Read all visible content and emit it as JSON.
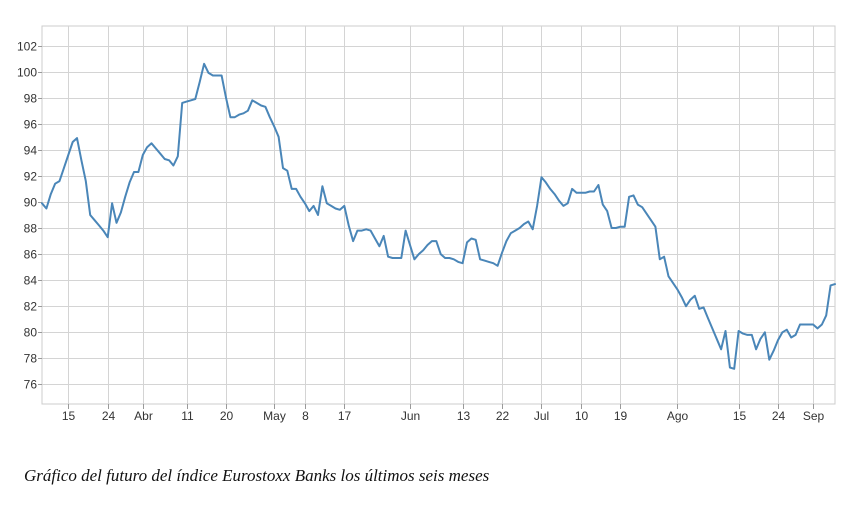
{
  "caption": "Gráfico del futuro del índice Eurostoxx Banks los últimos seis meses",
  "chart_data": {
    "type": "line",
    "title": "",
    "xlabel": "",
    "ylabel": "",
    "ylim": [
      74.5,
      103.5
    ],
    "grid": true,
    "line_color": "#4a86b8",
    "y_ticks": [
      76,
      78,
      80,
      82,
      84,
      86,
      88,
      90,
      92,
      94,
      96,
      98,
      100,
      102
    ],
    "x_ticks": [
      {
        "label": "15",
        "day": 6
      },
      {
        "label": "24",
        "day": 15
      },
      {
        "label": "Abr",
        "day": 23
      },
      {
        "label": "11",
        "day": 33
      },
      {
        "label": "20",
        "day": 42
      },
      {
        "label": "May",
        "day": 53
      },
      {
        "label": "8",
        "day": 60
      },
      {
        "label": "17",
        "day": 69
      },
      {
        "label": "Jun",
        "day": 84
      },
      {
        "label": "13",
        "day": 96
      },
      {
        "label": "22",
        "day": 105
      },
      {
        "label": "Jul",
        "day": 114
      },
      {
        "label": "10",
        "day": 123
      },
      {
        "label": "19",
        "day": 132
      },
      {
        "label": "Ago",
        "day": 145
      },
      {
        "label": "15",
        "day": 159
      },
      {
        "label": "24",
        "day": 168
      },
      {
        "label": "Sep",
        "day": 176
      }
    ],
    "series": [
      {
        "values": [
          [
            0,
            89.9
          ],
          [
            1,
            89.5
          ],
          [
            2,
            90.6
          ],
          [
            3,
            91.4
          ],
          [
            4,
            91.6
          ],
          [
            5,
            92.6
          ],
          [
            6,
            93.6
          ],
          [
            7,
            94.6
          ],
          [
            8,
            94.9
          ],
          [
            9,
            93.2
          ],
          [
            10,
            91.6
          ],
          [
            11,
            89.0
          ],
          [
            12,
            88.6
          ],
          [
            13,
            88.2
          ],
          [
            14,
            87.8
          ],
          [
            15,
            87.3
          ],
          [
            16,
            89.9
          ],
          [
            17,
            88.4
          ],
          [
            18,
            89.2
          ],
          [
            19,
            90.4
          ],
          [
            20,
            91.5
          ],
          [
            21,
            92.3
          ],
          [
            22,
            92.3
          ],
          [
            23,
            93.6
          ],
          [
            24,
            94.2
          ],
          [
            25,
            94.5
          ],
          [
            26,
            94.1
          ],
          [
            27,
            93.7
          ],
          [
            28,
            93.3
          ],
          [
            29,
            93.2
          ],
          [
            30,
            92.8
          ],
          [
            31,
            93.5
          ],
          [
            32,
            97.6
          ],
          [
            33,
            97.7
          ],
          [
            34,
            97.8
          ],
          [
            35,
            97.9
          ],
          [
            36,
            99.2
          ],
          [
            37,
            100.6
          ],
          [
            38,
            99.9
          ],
          [
            39,
            99.7
          ],
          [
            40,
            99.7
          ],
          [
            41,
            99.7
          ],
          [
            42,
            98.0
          ],
          [
            43,
            96.5
          ],
          [
            44,
            96.5
          ],
          [
            45,
            96.7
          ],
          [
            46,
            96.8
          ],
          [
            47,
            97.0
          ],
          [
            48,
            97.8
          ],
          [
            49,
            97.6
          ],
          [
            50,
            97.4
          ],
          [
            51,
            97.3
          ],
          [
            52,
            96.5
          ],
          [
            53,
            95.8
          ],
          [
            54,
            95.0
          ],
          [
            55,
            92.6
          ],
          [
            56,
            92.4
          ],
          [
            57,
            91.0
          ],
          [
            58,
            91.0
          ],
          [
            59,
            90.4
          ],
          [
            60,
            89.9
          ],
          [
            61,
            89.3
          ],
          [
            62,
            89.7
          ],
          [
            63,
            89.0
          ],
          [
            64,
            91.2
          ],
          [
            65,
            89.9
          ],
          [
            66,
            89.7
          ],
          [
            67,
            89.5
          ],
          [
            68,
            89.4
          ],
          [
            69,
            89.7
          ],
          [
            70,
            88.2
          ],
          [
            71,
            87.0
          ],
          [
            72,
            87.8
          ],
          [
            73,
            87.8
          ],
          [
            74,
            87.9
          ],
          [
            75,
            87.8
          ],
          [
            76,
            87.2
          ],
          [
            77,
            86.6
          ],
          [
            78,
            87.4
          ],
          [
            79,
            85.8
          ],
          [
            80,
            85.7
          ],
          [
            81,
            85.7
          ],
          [
            82,
            85.7
          ],
          [
            83,
            87.8
          ],
          [
            84,
            86.7
          ],
          [
            85,
            85.6
          ],
          [
            86,
            86.0
          ],
          [
            87,
            86.3
          ],
          [
            88,
            86.7
          ],
          [
            89,
            87.0
          ],
          [
            90,
            87.0
          ],
          [
            91,
            86.0
          ],
          [
            92,
            85.7
          ],
          [
            93,
            85.7
          ],
          [
            94,
            85.6
          ],
          [
            95,
            85.4
          ],
          [
            96,
            85.3
          ],
          [
            97,
            86.9
          ],
          [
            98,
            87.2
          ],
          [
            99,
            87.1
          ],
          [
            100,
            85.6
          ],
          [
            101,
            85.5
          ],
          [
            102,
            85.4
          ],
          [
            103,
            85.3
          ],
          [
            104,
            85.1
          ],
          [
            105,
            86.1
          ],
          [
            106,
            87.0
          ],
          [
            107,
            87.6
          ],
          [
            108,
            87.8
          ],
          [
            109,
            88.0
          ],
          [
            110,
            88.3
          ],
          [
            111,
            88.5
          ],
          [
            112,
            87.9
          ],
          [
            113,
            89.7
          ],
          [
            114,
            91.9
          ],
          [
            115,
            91.5
          ],
          [
            116,
            91.0
          ],
          [
            117,
            90.6
          ],
          [
            118,
            90.1
          ],
          [
            119,
            89.7
          ],
          [
            120,
            89.9
          ],
          [
            121,
            91.0
          ],
          [
            122,
            90.7
          ],
          [
            123,
            90.7
          ],
          [
            124,
            90.7
          ],
          [
            125,
            90.8
          ],
          [
            126,
            90.8
          ],
          [
            127,
            91.3
          ],
          [
            128,
            89.8
          ],
          [
            129,
            89.3
          ],
          [
            130,
            88.0
          ],
          [
            131,
            88.0
          ],
          [
            132,
            88.1
          ],
          [
            133,
            88.1
          ],
          [
            134,
            90.4
          ],
          [
            135,
            90.5
          ],
          [
            136,
            89.8
          ],
          [
            137,
            89.6
          ],
          [
            138,
            89.1
          ],
          [
            139,
            88.6
          ],
          [
            140,
            88.1
          ],
          [
            141,
            85.6
          ],
          [
            142,
            85.8
          ],
          [
            143,
            84.3
          ],
          [
            144,
            83.8
          ],
          [
            145,
            83.3
          ],
          [
            146,
            82.7
          ],
          [
            147,
            82.0
          ],
          [
            148,
            82.5
          ],
          [
            149,
            82.8
          ],
          [
            150,
            81.8
          ],
          [
            151,
            81.9
          ],
          [
            152,
            81.1
          ],
          [
            153,
            80.3
          ],
          [
            154,
            79.5
          ],
          [
            155,
            78.7
          ],
          [
            156,
            80.1
          ],
          [
            157,
            77.3
          ],
          [
            158,
            77.2
          ],
          [
            159,
            80.1
          ],
          [
            160,
            79.9
          ],
          [
            161,
            79.8
          ],
          [
            162,
            79.8
          ],
          [
            163,
            78.7
          ],
          [
            164,
            79.5
          ],
          [
            165,
            80.0
          ],
          [
            166,
            77.9
          ],
          [
            167,
            78.6
          ],
          [
            168,
            79.4
          ],
          [
            169,
            80.0
          ],
          [
            170,
            80.2
          ],
          [
            171,
            79.6
          ],
          [
            172,
            79.8
          ],
          [
            173,
            80.6
          ],
          [
            174,
            80.6
          ],
          [
            175,
            80.6
          ],
          [
            176,
            80.6
          ],
          [
            177,
            80.3
          ],
          [
            178,
            80.6
          ],
          [
            179,
            81.3
          ],
          [
            180,
            83.6
          ],
          [
            181,
            83.7
          ]
        ]
      }
    ]
  }
}
